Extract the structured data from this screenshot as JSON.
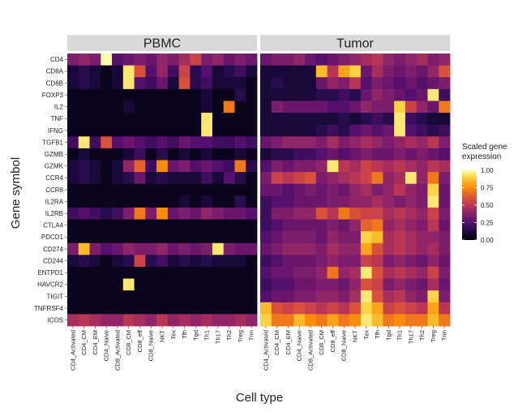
{
  "chart_data": {
    "type": "heatmap",
    "xlabel": "Cell type",
    "ylabel": "Gene symbol",
    "panels": [
      {
        "name": "PBMC",
        "cell_types": [
          "CD4_Activated",
          "CD4_CM",
          "CD4_EM",
          "CD4_Naive",
          "CD8_Activated",
          "CD8_CM",
          "CD8_eff",
          "CD8_Naive",
          "NKT",
          "Tex",
          "Tfh",
          "Tgd",
          "Th1",
          "Th17",
          "Th2",
          "Treg",
          "Trm"
        ],
        "values": [
          [
            0.35,
            0.4,
            0.35,
            1.0,
            0.25,
            0.3,
            0.35,
            0.3,
            0.4,
            0.35,
            0.45,
            0.55,
            0.35,
            0.4,
            0.3,
            0.35,
            0.3
          ],
          [
            0.1,
            0.15,
            0.1,
            0.05,
            0.1,
            0.95,
            0.6,
            0.25,
            0.4,
            0.2,
            0.55,
            0.15,
            0.25,
            0.1,
            0.15,
            0.2,
            0.1
          ],
          [
            0.1,
            0.15,
            0.1,
            0.05,
            0.1,
            0.95,
            0.25,
            0.2,
            0.3,
            0.1,
            0.6,
            0.15,
            0.2,
            0.1,
            0.1,
            0.1,
            0.05
          ],
          [
            0.05,
            0.05,
            0.05,
            0.05,
            0.05,
            0.05,
            0.05,
            0.05,
            0.05,
            0.05,
            0.05,
            0.05,
            0.1,
            0.05,
            0.05,
            0.15,
            0.05
          ],
          [
            0.05,
            0.05,
            0.05,
            0.05,
            0.05,
            0.1,
            0.05,
            0.05,
            0.05,
            0.05,
            0.05,
            0.05,
            0.1,
            0.05,
            0.7,
            0.05,
            0.05
          ],
          [
            0.05,
            0.05,
            0.05,
            0.05,
            0.05,
            0.05,
            0.05,
            0.05,
            0.05,
            0.05,
            0.05,
            0.05,
            0.95,
            0.05,
            0.05,
            0.05,
            0.05
          ],
          [
            0.05,
            0.05,
            0.05,
            0.05,
            0.05,
            0.05,
            0.05,
            0.05,
            0.05,
            0.05,
            0.05,
            0.05,
            0.95,
            0.05,
            0.05,
            0.05,
            0.05
          ],
          [
            0.2,
            0.95,
            0.2,
            0.6,
            0.25,
            0.3,
            0.25,
            0.2,
            0.25,
            0.2,
            0.3,
            0.25,
            0.25,
            0.2,
            0.2,
            0.25,
            0.2
          ],
          [
            0.05,
            0.1,
            0.05,
            0.05,
            0.05,
            0.1,
            0.2,
            0.05,
            0.15,
            0.05,
            0.1,
            0.05,
            0.1,
            0.05,
            0.05,
            0.1,
            0.05
          ],
          [
            0.1,
            0.15,
            0.1,
            0.05,
            0.1,
            0.4,
            0.65,
            0.2,
            0.75,
            0.3,
            0.35,
            0.25,
            0.3,
            0.25,
            0.2,
            0.7,
            0.15
          ],
          [
            0.1,
            0.15,
            0.1,
            0.05,
            0.1,
            0.15,
            0.3,
            0.1,
            0.15,
            0.1,
            0.1,
            0.1,
            0.2,
            0.1,
            0.25,
            0.15,
            0.05
          ],
          [
            0.05,
            0.05,
            0.05,
            0.05,
            0.05,
            0.05,
            0.05,
            0.05,
            0.05,
            0.05,
            0.05,
            0.05,
            0.05,
            0.05,
            0.05,
            0.05,
            0.05
          ],
          [
            0.05,
            0.05,
            0.05,
            0.05,
            0.05,
            0.05,
            0.05,
            0.05,
            0.05,
            0.05,
            0.1,
            0.05,
            0.1,
            0.05,
            0.05,
            0.15,
            0.05
          ],
          [
            0.2,
            0.25,
            0.2,
            0.15,
            0.2,
            0.35,
            0.7,
            0.35,
            0.75,
            0.3,
            0.35,
            0.3,
            0.4,
            0.35,
            0.3,
            0.3,
            0.25
          ],
          [
            0.05,
            0.05,
            0.05,
            0.05,
            0.05,
            0.05,
            0.05,
            0.05,
            0.05,
            0.05,
            0.05,
            0.05,
            0.05,
            0.05,
            0.05,
            0.05,
            0.05
          ],
          [
            0.05,
            0.05,
            0.05,
            0.05,
            0.05,
            0.05,
            0.05,
            0.05,
            0.05,
            0.05,
            0.05,
            0.05,
            0.05,
            0.05,
            0.05,
            0.05,
            0.05
          ],
          [
            0.35,
            0.85,
            0.35,
            0.25,
            0.3,
            0.4,
            0.35,
            0.35,
            0.4,
            0.3,
            0.35,
            0.3,
            0.35,
            0.95,
            0.35,
            0.3,
            0.3
          ],
          [
            0.1,
            0.15,
            0.1,
            0.05,
            0.1,
            0.15,
            0.55,
            0.15,
            0.2,
            0.1,
            0.15,
            0.1,
            0.15,
            0.1,
            0.1,
            0.1,
            0.05
          ],
          [
            0.05,
            0.05,
            0.05,
            0.05,
            0.05,
            0.05,
            0.05,
            0.05,
            0.05,
            0.05,
            0.05,
            0.05,
            0.05,
            0.05,
            0.05,
            0.05,
            0.05
          ],
          [
            0.05,
            0.05,
            0.05,
            0.05,
            0.05,
            0.95,
            0.05,
            0.05,
            0.05,
            0.05,
            0.05,
            0.05,
            0.05,
            0.05,
            0.05,
            0.05,
            0.05
          ],
          [
            0.05,
            0.05,
            0.05,
            0.05,
            0.05,
            0.05,
            0.05,
            0.05,
            0.05,
            0.05,
            0.05,
            0.05,
            0.05,
            0.05,
            0.05,
            0.05,
            0.05
          ],
          [
            0.05,
            0.05,
            0.05,
            0.05,
            0.05,
            0.05,
            0.05,
            0.05,
            0.05,
            0.05,
            0.05,
            0.05,
            0.05,
            0.05,
            0.05,
            0.05,
            0.05
          ],
          [
            0.45,
            0.5,
            0.45,
            0.4,
            0.4,
            0.5,
            0.45,
            0.4,
            0.5,
            0.4,
            0.45,
            0.4,
            0.45,
            0.4,
            0.4,
            0.45,
            0.4
          ]
        ]
      },
      {
        "name": "Tumor",
        "cell_types": [
          "CD4_Activated",
          "CD4_CM",
          "CD4_EM",
          "CD4_Naive",
          "CD8_Activated",
          "CD8_CM",
          "CD8_eff",
          "CD8_Naive",
          "NKT",
          "Tex",
          "Tfh",
          "Tgd",
          "Th1",
          "Th17",
          "Th2",
          "Treg",
          "Trm"
        ],
        "values": [
          [
            0.3,
            0.35,
            0.35,
            0.4,
            0.3,
            0.25,
            0.3,
            0.35,
            0.4,
            0.45,
            0.5,
            0.4,
            0.35,
            0.4,
            0.45,
            0.35,
            0.4
          ],
          [
            0.1,
            0.1,
            0.1,
            0.1,
            0.1,
            0.85,
            0.5,
            0.8,
            0.9,
            0.3,
            0.45,
            0.35,
            0.3,
            0.35,
            0.3,
            0.4,
            0.6
          ],
          [
            0.1,
            0.15,
            0.1,
            0.1,
            0.1,
            0.3,
            0.4,
            0.35,
            0.5,
            0.25,
            0.35,
            0.3,
            0.25,
            0.3,
            0.25,
            0.3,
            0.35
          ],
          [
            0.1,
            0.1,
            0.1,
            0.1,
            0.1,
            0.15,
            0.15,
            0.2,
            0.15,
            0.3,
            0.4,
            0.35,
            0.3,
            0.25,
            0.3,
            0.95,
            0.2
          ],
          [
            0.1,
            0.35,
            0.3,
            0.3,
            0.3,
            0.3,
            0.25,
            0.25,
            0.3,
            0.4,
            0.35,
            0.35,
            0.9,
            0.55,
            0.4,
            0.3,
            0.7
          ],
          [
            0.1,
            0.1,
            0.1,
            0.1,
            0.1,
            0.1,
            0.1,
            0.15,
            0.1,
            0.15,
            0.2,
            0.15,
            0.95,
            0.2,
            0.15,
            0.1,
            0.1
          ],
          [
            0.1,
            0.1,
            0.1,
            0.1,
            0.1,
            0.15,
            0.2,
            0.15,
            0.25,
            0.3,
            0.25,
            0.3,
            0.95,
            0.25,
            0.2,
            0.15,
            0.2
          ],
          [
            0.3,
            0.35,
            0.4,
            0.4,
            0.4,
            0.35,
            0.45,
            0.35,
            0.4,
            0.45,
            0.4,
            0.35,
            0.4,
            0.45,
            0.4,
            0.5,
            0.35
          ],
          [
            0.1,
            0.15,
            0.15,
            0.2,
            0.2,
            0.25,
            0.3,
            0.25,
            0.3,
            0.35,
            0.3,
            0.3,
            0.35,
            0.3,
            0.35,
            0.3,
            0.25
          ],
          [
            0.25,
            0.35,
            0.3,
            0.35,
            0.35,
            0.4,
            0.95,
            0.5,
            0.45,
            0.55,
            0.5,
            0.45,
            0.5,
            0.45,
            0.4,
            0.5,
            0.45
          ],
          [
            0.35,
            0.55,
            0.5,
            0.55,
            0.6,
            0.35,
            0.4,
            0.45,
            0.5,
            0.55,
            0.7,
            0.4,
            0.45,
            0.95,
            0.4,
            0.7,
            0.35
          ],
          [
            0.3,
            0.3,
            0.25,
            0.3,
            0.35,
            0.3,
            0.35,
            0.3,
            0.4,
            0.45,
            0.35,
            0.4,
            0.5,
            0.4,
            0.35,
            0.9,
            0.3
          ],
          [
            0.2,
            0.25,
            0.25,
            0.3,
            0.3,
            0.3,
            0.35,
            0.35,
            0.4,
            0.4,
            0.45,
            0.4,
            0.35,
            0.4,
            0.35,
            0.95,
            0.3
          ],
          [
            0.2,
            0.35,
            0.35,
            0.4,
            0.4,
            0.6,
            0.5,
            0.7,
            0.6,
            0.55,
            0.55,
            0.45,
            0.5,
            0.45,
            0.4,
            0.55,
            0.35
          ],
          [
            0.2,
            0.25,
            0.3,
            0.3,
            0.3,
            0.3,
            0.35,
            0.3,
            0.4,
            0.65,
            0.7,
            0.4,
            0.45,
            0.4,
            0.35,
            0.5,
            0.3
          ],
          [
            0.25,
            0.3,
            0.35,
            0.35,
            0.35,
            0.3,
            0.4,
            0.35,
            0.35,
            0.9,
            0.85,
            0.45,
            0.5,
            0.45,
            0.4,
            0.4,
            0.35
          ],
          [
            0.3,
            0.35,
            0.4,
            0.4,
            0.4,
            0.35,
            0.45,
            0.4,
            0.4,
            0.8,
            0.6,
            0.45,
            0.5,
            0.45,
            0.4,
            0.45,
            0.35
          ],
          [
            0.2,
            0.25,
            0.3,
            0.3,
            0.3,
            0.35,
            0.4,
            0.35,
            0.35,
            0.55,
            0.5,
            0.35,
            0.4,
            0.35,
            0.3,
            0.4,
            0.3
          ],
          [
            0.25,
            0.3,
            0.3,
            0.35,
            0.35,
            0.4,
            0.7,
            0.4,
            0.45,
            0.95,
            0.6,
            0.45,
            0.5,
            0.45,
            0.4,
            0.55,
            0.35
          ],
          [
            0.2,
            0.25,
            0.25,
            0.3,
            0.3,
            0.35,
            0.35,
            0.3,
            0.4,
            0.6,
            0.55,
            0.35,
            0.4,
            0.35,
            0.3,
            0.45,
            0.3
          ],
          [
            0.25,
            0.3,
            0.3,
            0.35,
            0.35,
            0.4,
            0.4,
            0.35,
            0.45,
            0.95,
            0.6,
            0.45,
            0.5,
            0.4,
            0.35,
            0.9,
            0.35
          ],
          [
            0.85,
            0.6,
            0.55,
            0.6,
            0.55,
            0.5,
            0.55,
            0.5,
            0.6,
            0.9,
            0.8,
            0.55,
            0.6,
            0.55,
            0.5,
            0.8,
            0.5
          ],
          [
            0.9,
            0.7,
            0.7,
            0.85,
            0.75,
            0.7,
            0.8,
            0.7,
            0.75,
            0.95,
            0.85,
            0.7,
            0.75,
            0.7,
            0.7,
            0.85,
            0.7
          ]
        ]
      }
    ],
    "genes": [
      "CD4",
      "CD8A",
      "CD8B",
      "FOXP3",
      "IL2",
      "TNF",
      "IFNG",
      "TGFB1",
      "GZMB",
      "GZMK",
      "CCR4",
      "CCR8",
      "IL2RA",
      "IL2RB",
      "CTLA4",
      "PDCD1",
      "CD274",
      "CD244",
      "ENTPD1",
      "HAVCR2",
      "TIGIT",
      "TNFRSF4",
      "ICOS"
    ],
    "legend": {
      "title_lines": [
        "Scaled gene",
        "expression"
      ],
      "ticks": [
        "1.00",
        "0.75",
        "0.50",
        "0.25",
        "0.00"
      ],
      "tick_values": [
        1.0,
        0.75,
        0.5,
        0.25,
        0.0
      ],
      "colormap": "inferno",
      "range": [
        0,
        1
      ]
    },
    "colors": {
      "strip_bg": "#d9d9d9",
      "low": "#000004",
      "high": "#fcffa4"
    }
  }
}
